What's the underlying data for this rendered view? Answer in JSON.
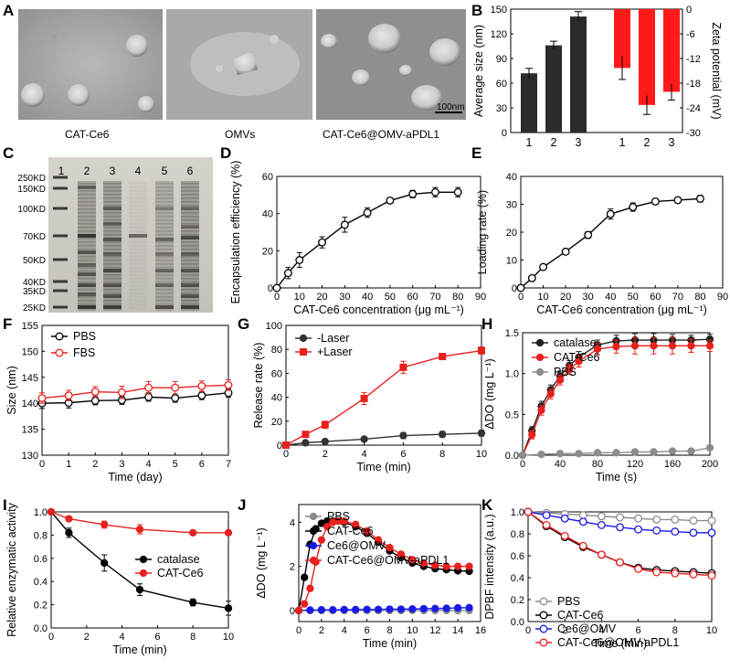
{
  "panel_labels": [
    "A",
    "B",
    "C",
    "D",
    "E",
    "F",
    "G",
    "H",
    "I",
    "J",
    "K"
  ],
  "panel_a": {
    "images": [
      {
        "caption": "CAT-Ce6"
      },
      {
        "caption": "OMVs"
      },
      {
        "caption": "CAT-Ce6@OMV-aPDL1"
      }
    ],
    "scalebar": "100nm"
  },
  "panel_c": {
    "lanes": [
      "1",
      "2",
      "3",
      "4",
      "5",
      "6"
    ],
    "markers": [
      "250KD",
      "150KD",
      "100KD",
      "70KD",
      "50KD",
      "40KD",
      "35KD",
      "25KD"
    ]
  },
  "colors": {
    "black": "#000000",
    "red": "#e8211f",
    "gray": "#8c8c8c",
    "blue": "#1a1ae6",
    "dark_bar": "#2b2b2b",
    "red_bar": "#ff1a1a"
  },
  "chart_data": [
    {
      "panel": "B",
      "type": "bar",
      "left": {
        "ylabel": "Average size (nm)",
        "ylim": [
          0,
          150
        ],
        "yticks": [
          0,
          30,
          60,
          90,
          120,
          150
        ],
        "categories": [
          "1",
          "2",
          "3"
        ],
        "values": [
          72,
          106,
          141
        ],
        "errors": [
          6,
          5,
          6
        ]
      },
      "right": {
        "ylabel": "Zeta potential (mV)",
        "ylim": [
          -30,
          0
        ],
        "yticks": [
          0,
          -6,
          -12,
          -18,
          -24,
          -30
        ],
        "categories": [
          "1",
          "2",
          "3"
        ],
        "values": [
          -14.3,
          -23.3,
          -20.1
        ],
        "errors": [
          2.8,
          2.3,
          2.0
        ]
      }
    },
    {
      "panel": "D",
      "type": "line",
      "xlabel": "CAT-Ce6 concentration (μg mL⁻¹)",
      "ylabel": "Encapsulation efficiency (%)",
      "xlim": [
        0,
        90
      ],
      "ylim": [
        0,
        60
      ],
      "xticks": [
        0,
        10,
        20,
        30,
        40,
        50,
        60,
        70,
        80,
        90
      ],
      "yticks": [
        0,
        20,
        40,
        60
      ],
      "series": [
        {
          "name": "EE",
          "marker": "open-circle",
          "color": "#000000",
          "x": [
            0,
            5,
            10,
            20,
            30,
            40,
            50,
            60,
            70,
            80
          ],
          "y": [
            0,
            8,
            15,
            24.5,
            34,
            40.5,
            47,
            50.5,
            51.5,
            51.5
          ],
          "err": [
            0,
            3,
            4,
            3,
            4,
            2.5,
            1.5,
            2,
            2.5,
            2.5
          ]
        }
      ]
    },
    {
      "panel": "E",
      "type": "line",
      "xlabel": "CAT-Ce6 concentration (μg mL⁻¹)",
      "ylabel": "Loading rate (%)",
      "xlim": [
        0,
        90
      ],
      "ylim": [
        0,
        40
      ],
      "xticks": [
        0,
        10,
        20,
        30,
        40,
        50,
        60,
        70,
        80,
        90
      ],
      "yticks": [
        0,
        10,
        20,
        30,
        40
      ],
      "series": [
        {
          "name": "LR",
          "marker": "open-circle",
          "color": "#000000",
          "x": [
            0,
            5,
            10,
            20,
            30,
            40,
            50,
            60,
            70,
            80
          ],
          "y": [
            0,
            3.5,
            7.5,
            13,
            19,
            26.5,
            29,
            31,
            31.5,
            32
          ],
          "err": [
            0,
            0.5,
            1,
            1,
            1.2,
            1.8,
            1.5,
            1,
            0.5,
            1.2
          ]
        }
      ]
    },
    {
      "panel": "F",
      "type": "line",
      "xlabel": "Time (day)",
      "ylabel": "Size (nm)",
      "xlim": [
        0,
        7
      ],
      "ylim": [
        130,
        155
      ],
      "xticks": [
        0,
        1,
        2,
        3,
        4,
        5,
        6,
        7
      ],
      "yticks": [
        130,
        135,
        140,
        145,
        150,
        155
      ],
      "series": [
        {
          "name": "PBS",
          "marker": "open-circle",
          "color": "#000000",
          "x": [
            0,
            1,
            2,
            3,
            4,
            5,
            6,
            7
          ],
          "y": [
            140,
            140.1,
            140.5,
            140.6,
            141.2,
            141,
            141.5,
            142
          ],
          "err": [
            1,
            1,
            0.8,
            0.8,
            0.8,
            0.8,
            0.8,
            0.8
          ]
        },
        {
          "name": "FBS",
          "marker": "open-circle",
          "color": "#e8211f",
          "x": [
            0,
            1,
            2,
            3,
            4,
            5,
            6,
            7
          ],
          "y": [
            141,
            141.5,
            142.2,
            142.1,
            143,
            143,
            143.3,
            143.5
          ],
          "err": [
            1,
            1,
            1,
            1.2,
            1.2,
            1.2,
            1,
            1
          ]
        }
      ]
    },
    {
      "panel": "G",
      "type": "line",
      "xlabel": "Time (min)",
      "ylabel": "Release rate (%)",
      "xlim": [
        0,
        10
      ],
      "ylim": [
        0,
        100
      ],
      "xticks": [
        0,
        2,
        4,
        6,
        8,
        10
      ],
      "yticks": [
        0,
        20,
        40,
        60,
        80,
        100
      ],
      "series": [
        {
          "name": "-Laser",
          "marker": "circle",
          "color": "#333333",
          "x": [
            0,
            1,
            2,
            4,
            6,
            8,
            10
          ],
          "y": [
            0,
            2,
            3,
            5,
            8,
            9,
            10
          ],
          "err": [
            0,
            1,
            1,
            2,
            2.5,
            2.5,
            2.5
          ]
        },
        {
          "name": "+Laser",
          "marker": "square",
          "color": "#e8211f",
          "x": [
            0,
            1,
            2,
            4,
            6,
            8,
            10
          ],
          "y": [
            0,
            9,
            17,
            39,
            65,
            74,
            79
          ],
          "err": [
            0,
            1,
            3,
            5,
            5,
            1.5,
            3
          ]
        }
      ]
    },
    {
      "panel": "H",
      "type": "line",
      "xlabel": "Time (s)",
      "ylabel": "ΔDO (mg L⁻¹)",
      "xlim": [
        0,
        200
      ],
      "ylim": [
        0,
        1.5
      ],
      "xticks": [
        0,
        40,
        80,
        120,
        160,
        200
      ],
      "yticks": [
        0.0,
        0.5,
        1.0,
        1.5
      ],
      "series": [
        {
          "name": "catalase",
          "marker": "circle",
          "color": "#222222",
          "x": [
            0,
            10,
            20,
            30,
            40,
            50,
            60,
            80,
            100,
            120,
            140,
            160,
            180,
            200
          ],
          "y": [
            0,
            0.3,
            0.6,
            0.8,
            0.97,
            1.1,
            1.2,
            1.35,
            1.4,
            1.41,
            1.41,
            1.41,
            1.41,
            1.42
          ],
          "err": [
            0,
            0.05,
            0.06,
            0.06,
            0.06,
            0.06,
            0.07,
            0.06,
            0.07,
            0.08,
            0.08,
            0.07,
            0.06,
            0.06
          ]
        },
        {
          "name": "CAT-Ce6",
          "marker": "circle",
          "color": "#e8211f",
          "x": [
            0,
            10,
            20,
            30,
            40,
            50,
            60,
            80,
            100,
            120,
            140,
            160,
            180,
            200
          ],
          "y": [
            0,
            0.25,
            0.55,
            0.75,
            0.92,
            1.05,
            1.15,
            1.3,
            1.33,
            1.34,
            1.34,
            1.34,
            1.34,
            1.34
          ],
          "err": [
            0,
            0.05,
            0.06,
            0.06,
            0.06,
            0.06,
            0.07,
            0.07,
            0.08,
            0.1,
            0.1,
            0.1,
            0.08,
            0.07
          ]
        },
        {
          "name": "PBS",
          "marker": "circle",
          "color": "#8c8c8c",
          "x": [
            0,
            20,
            40,
            60,
            80,
            100,
            120,
            140,
            160,
            180,
            200
          ],
          "y": [
            0,
            0.01,
            0.02,
            0.02,
            0.03,
            0.03,
            0.04,
            0.04,
            0.05,
            0.05,
            0.09
          ],
          "err": [
            0,
            0,
            0,
            0,
            0,
            0,
            0,
            0,
            0,
            0,
            0
          ]
        }
      ]
    },
    {
      "panel": "I",
      "type": "line",
      "xlabel": "Time (min)",
      "ylabel": "Relative enzymatic activity",
      "xlim": [
        0,
        10
      ],
      "ylim": [
        0,
        1.0
      ],
      "xticks": [
        0,
        2,
        4,
        6,
        8,
        10
      ],
      "yticks": [
        0.0,
        0.2,
        0.4,
        0.6,
        0.8,
        1.0
      ],
      "series": [
        {
          "name": "catalase",
          "marker": "circle",
          "color": "#000000",
          "x": [
            0,
            1,
            3,
            5,
            8,
            10
          ],
          "y": [
            1.0,
            0.82,
            0.56,
            0.33,
            0.22,
            0.17
          ],
          "err": [
            0,
            0.04,
            0.07,
            0.05,
            0.03,
            0.06
          ]
        },
        {
          "name": "CAT-Ce6",
          "marker": "circle",
          "color": "#e8211f",
          "x": [
            0,
            1,
            3,
            5,
            8,
            10
          ],
          "y": [
            1.0,
            0.94,
            0.89,
            0.85,
            0.82,
            0.82
          ],
          "err": [
            0,
            0.02,
            0.03,
            0.04,
            0.01,
            0.01
          ]
        }
      ]
    },
    {
      "panel": "J",
      "type": "line",
      "xlabel": "Time (min)",
      "ylabel": "ΔDO (mg L⁻¹)",
      "xlim": [
        0,
        16
      ],
      "ylim": [
        -0.5,
        4.8
      ],
      "xticks": [
        0,
        2,
        4,
        6,
        8,
        10,
        12,
        14,
        16
      ],
      "yticks": [
        0,
        2,
        4
      ],
      "series": [
        {
          "name": "PBS",
          "marker": "circle",
          "color": "#8c8c8c",
          "x": [
            0,
            1,
            2,
            3,
            4,
            5,
            6,
            7,
            8,
            9,
            10,
            11,
            12,
            13,
            14,
            15
          ],
          "y": [
            0,
            0,
            0,
            0,
            0,
            0,
            0,
            0,
            0,
            0,
            0,
            0,
            0,
            0,
            0,
            0
          ]
        },
        {
          "name": "CAT-Ce6",
          "marker": "circle",
          "color": "#000000",
          "x": [
            0,
            0.5,
            1,
            1.5,
            2,
            2.5,
            3,
            3.5,
            4,
            5,
            6,
            7,
            8,
            9,
            10,
            11,
            12,
            13,
            14,
            15
          ],
          "y": [
            0,
            1.5,
            3.0,
            3.7,
            3.95,
            4.05,
            4.05,
            4.05,
            4.0,
            3.8,
            3.5,
            3.1,
            2.7,
            2.4,
            2.15,
            2.0,
            1.9,
            1.85,
            1.8,
            1.78
          ]
        },
        {
          "name": "Ce6@OMV",
          "marker": "circle",
          "color": "#1a1ae6",
          "x": [
            0,
            1,
            2,
            3,
            4,
            5,
            6,
            7,
            8,
            9,
            10,
            11,
            12,
            13,
            14,
            15
          ],
          "y": [
            0,
            0.02,
            0.03,
            0.03,
            0.04,
            0.04,
            0.05,
            0.05,
            0.06,
            0.06,
            0.07,
            0.08,
            0.09,
            0.1,
            0.12,
            0.13
          ]
        },
        {
          "name": "CAT-Ce6@OMV-aPDL1",
          "marker": "circle",
          "color": "#e8211f",
          "x": [
            0,
            0.5,
            1,
            1.5,
            2,
            2.5,
            3,
            3.5,
            4,
            5,
            6,
            7,
            8,
            9,
            10,
            11,
            12,
            13,
            14,
            15
          ],
          "y": [
            0,
            0.3,
            1.0,
            2.2,
            3.2,
            3.8,
            4.0,
            4.05,
            4.05,
            3.9,
            3.6,
            3.2,
            2.85,
            2.55,
            2.3,
            2.15,
            2.05,
            2.0,
            2.0,
            2.0
          ]
        }
      ]
    },
    {
      "panel": "K",
      "type": "line",
      "xlabel": "Time (min)",
      "ylabel": "DPBF intensity (a.u.)",
      "xlim": [
        0,
        10
      ],
      "ylim": [
        0,
        1.0
      ],
      "xticks": [
        0,
        2,
        4,
        6,
        8,
        10
      ],
      "yticks": [
        0.0,
        0.2,
        0.4,
        0.6,
        0.8,
        1.0
      ],
      "series": [
        {
          "name": "PBS",
          "marker": "open-circle",
          "color": "#8c8c8c",
          "x": [
            0,
            1,
            2,
            3,
            4,
            5,
            6,
            7,
            8,
            9,
            10
          ],
          "y": [
            1.0,
            0.99,
            0.98,
            0.97,
            0.96,
            0.95,
            0.94,
            0.93,
            0.93,
            0.92,
            0.92
          ]
        },
        {
          "name": "CAT-Ce6",
          "marker": "open-circle",
          "color": "#000000",
          "x": [
            0,
            1,
            2,
            3,
            4,
            5,
            6,
            7,
            8,
            9,
            10
          ],
          "y": [
            1.0,
            0.87,
            0.77,
            0.68,
            0.61,
            0.54,
            0.49,
            0.47,
            0.46,
            0.45,
            0.44
          ]
        },
        {
          "name": "Ce6@OMV",
          "marker": "open-circle",
          "color": "#1a1ae6",
          "x": [
            0,
            1,
            2,
            3,
            4,
            5,
            6,
            7,
            8,
            9,
            10
          ],
          "y": [
            1.0,
            0.97,
            0.94,
            0.91,
            0.88,
            0.86,
            0.84,
            0.83,
            0.82,
            0.81,
            0.81
          ]
        },
        {
          "name": "CAT-Ce6@OMV-aPDL1",
          "marker": "open-circle",
          "color": "#e8211f",
          "x": [
            0,
            1,
            2,
            3,
            4,
            5,
            6,
            7,
            8,
            9,
            10
          ],
          "y": [
            1.0,
            0.88,
            0.78,
            0.69,
            0.61,
            0.54,
            0.48,
            0.45,
            0.44,
            0.43,
            0.42
          ]
        }
      ]
    }
  ]
}
